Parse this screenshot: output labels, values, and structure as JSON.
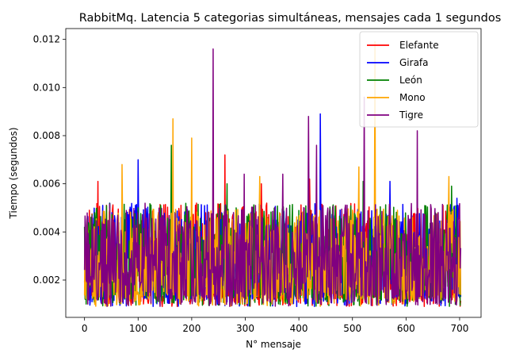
{
  "chart_data": {
    "type": "line",
    "title": "RabbitMq. Latencia 5 categorias simultáneas, mensajes cada 1 segundos",
    "xlabel": "N° mensaje",
    "ylabel": "Tiempo (segundos)",
    "xlim": [
      -35,
      740
    ],
    "ylim": [
      0.00045,
      0.01245
    ],
    "x_ticks": [
      0,
      100,
      200,
      300,
      400,
      500,
      600,
      700
    ],
    "x_tick_labels": [
      "0",
      "100",
      "200",
      "300",
      "400",
      "500",
      "600",
      "700"
    ],
    "y_ticks": [
      0.002,
      0.004,
      0.006,
      0.008,
      0.01,
      0.012
    ],
    "y_tick_labels": [
      "0.002",
      "0.004",
      "0.006",
      "0.008",
      "0.010",
      "0.012"
    ],
    "grid": false,
    "legend_position": "top-right",
    "series": [
      {
        "name": "Elefante",
        "color": "#ff0000",
        "x_start": 0,
        "x_end": 702,
        "n_points": 703,
        "min": 0.0009,
        "max": 0.0072,
        "typical_range": [
          0.0012,
          0.0052
        ],
        "peaks": [
          [
            25,
            0.0061
          ],
          [
            262,
            0.0072
          ],
          [
            330,
            0.006
          ],
          [
            420,
            0.0062
          ]
        ]
      },
      {
        "name": "Girafa",
        "color": "#0000ff",
        "x_start": 0,
        "x_end": 702,
        "n_points": 703,
        "min": 0.0009,
        "max": 0.0089,
        "typical_range": [
          0.0012,
          0.0052
        ],
        "peaks": [
          [
            100,
            0.007
          ],
          [
            440,
            0.0089
          ],
          [
            570,
            0.0061
          ],
          [
            695,
            0.0054
          ]
        ]
      },
      {
        "name": "León",
        "color": "#008000",
        "x_start": 0,
        "x_end": 702,
        "n_points": 703,
        "min": 0.0009,
        "max": 0.0076,
        "typical_range": [
          0.0012,
          0.0052
        ],
        "peaks": [
          [
            162,
            0.0076
          ],
          [
            266,
            0.006
          ],
          [
            520,
            0.0061
          ],
          [
            685,
            0.0059
          ]
        ]
      },
      {
        "name": "Mono",
        "color": "#ffa500",
        "x_start": 0,
        "x_end": 702,
        "n_points": 703,
        "min": 0.0009,
        "max": 0.0119,
        "typical_range": [
          0.0012,
          0.005
        ],
        "peaks": [
          [
            70,
            0.0068
          ],
          [
            165,
            0.0087
          ],
          [
            200,
            0.0079
          ],
          [
            327,
            0.0063
          ],
          [
            512,
            0.0067
          ],
          [
            542,
            0.0119
          ],
          [
            680,
            0.0063
          ]
        ]
      },
      {
        "name": "Tigre",
        "color": "#800080",
        "x_start": 0,
        "x_end": 702,
        "n_points": 703,
        "min": 0.0009,
        "max": 0.0116,
        "typical_range": [
          0.0012,
          0.0052
        ],
        "peaks": [
          [
            240,
            0.0116
          ],
          [
            298,
            0.0064
          ],
          [
            370,
            0.0064
          ],
          [
            418,
            0.0088
          ],
          [
            433,
            0.0076
          ],
          [
            522,
            0.0096
          ],
          [
            621,
            0.0082
          ]
        ]
      }
    ]
  }
}
